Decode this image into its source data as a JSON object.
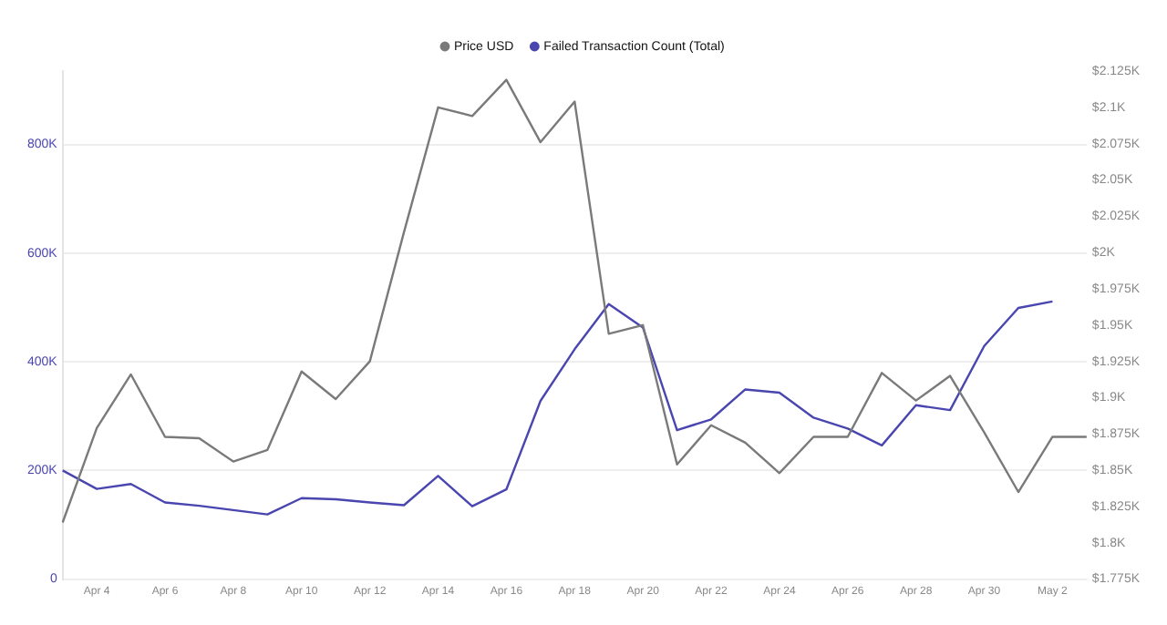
{
  "chart_data": {
    "type": "line",
    "categories": [
      null,
      "Apr 4",
      null,
      "Apr 6",
      null,
      "Apr 8",
      null,
      "Apr 10",
      null,
      "Apr 12",
      null,
      "Apr 14",
      null,
      "Apr 16",
      null,
      "Apr 18",
      null,
      "Apr 20",
      null,
      "Apr 22",
      null,
      "Apr 24",
      null,
      "Apr 26",
      null,
      "Apr 28",
      null,
      "Apr 30",
      null,
      "May 2",
      null
    ],
    "series": [
      {
        "name": "Price USD",
        "color": "#7a7a7a",
        "axis": "y2",
        "values": [
          1814,
          1879,
          1916,
          1873,
          1872,
          1856,
          1864,
          1918,
          1899,
          1925,
          2014,
          2100,
          2094,
          2119,
          2076,
          2104,
          1944,
          1950,
          1854,
          1881,
          1869,
          1848,
          1873,
          1873,
          1917,
          1898,
          1915,
          1876,
          1835,
          1873,
          1873
        ]
      },
      {
        "name": "Failed Transaction Count (Total)",
        "color": "#4a46b0",
        "values": [
          200000,
          166000,
          175000,
          141000,
          135000,
          127000,
          119000,
          149000,
          147000,
          141000,
          136000,
          190000,
          134000,
          165000,
          328000,
          423000,
          506000,
          463000,
          274000,
          294000,
          349000,
          343000,
          297000,
          277000,
          246000,
          320000,
          311000,
          429000,
          499000,
          511000,
          null
        ]
      }
    ],
    "ylim": [
      0,
      935000
    ],
    "yticks": [
      {
        "value": 0,
        "label": "0"
      },
      {
        "value": 200000,
        "label": "200K"
      },
      {
        "value": 400000,
        "label": "400K"
      },
      {
        "value": 600000,
        "label": "600K"
      },
      {
        "value": 800000,
        "label": "800K"
      }
    ],
    "y2lim": [
      1775,
      2125
    ],
    "y2ticks": [
      {
        "value": 1775,
        "label": "$1.775K"
      },
      {
        "value": 1800,
        "label": "$1.8K"
      },
      {
        "value": 1825,
        "label": "$1.825K"
      },
      {
        "value": 1850,
        "label": "$1.85K"
      },
      {
        "value": 1875,
        "label": "$1.875K"
      },
      {
        "value": 1900,
        "label": "$1.9K"
      },
      {
        "value": 1925,
        "label": "$1.925K"
      },
      {
        "value": 1950,
        "label": "$1.95K"
      },
      {
        "value": 1975,
        "label": "$1.975K"
      },
      {
        "value": 2000,
        "label": "$2K"
      },
      {
        "value": 2025,
        "label": "$2.025K"
      },
      {
        "value": 2050,
        "label": "$2.05K"
      },
      {
        "value": 2075,
        "label": "$2.075K"
      },
      {
        "value": 2100,
        "label": "$2.1K"
      },
      {
        "value": 2125,
        "label": "$2.125K"
      }
    ],
    "grid": "y",
    "legend": "top",
    "marker": "none",
    "line_style": "solid"
  }
}
